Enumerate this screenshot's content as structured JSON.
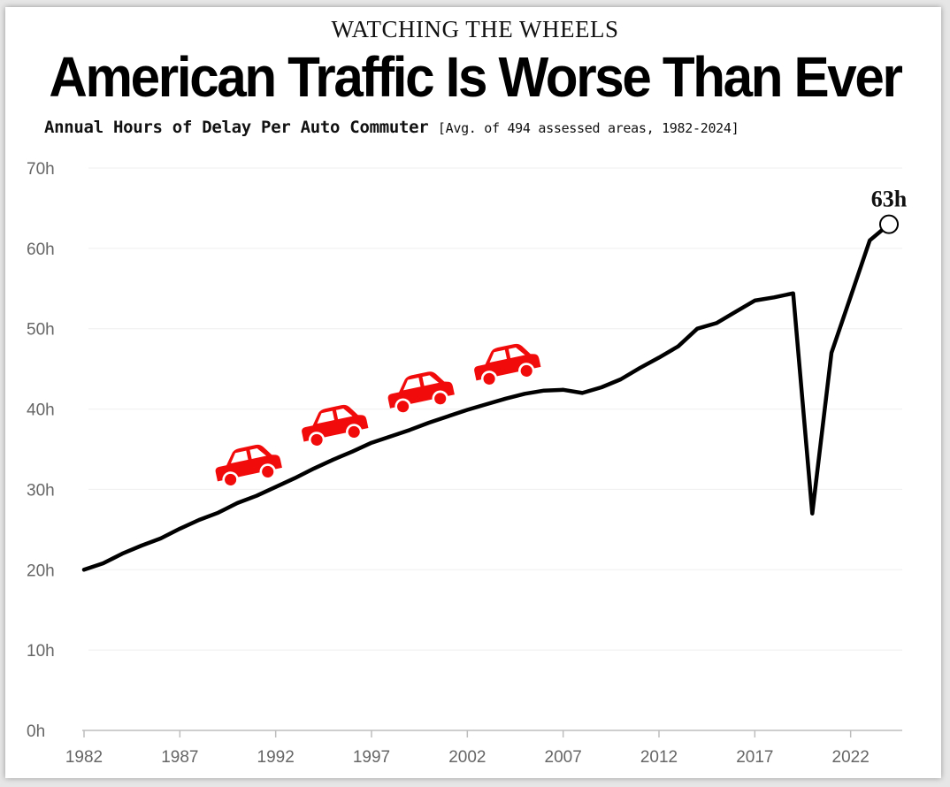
{
  "header": {
    "kicker": "WATCHING THE WHEELS",
    "title": "American Traffic Is Worse Than Ever",
    "subtitle": "Annual Hours of Delay Per Auto Commuter",
    "subtitle_note": "[Avg. of 494 assessed areas, 1982-2024]"
  },
  "colors": {
    "line": "#000000",
    "car": "#f20b0b",
    "grid": "#efefef",
    "axis_text": "#666666"
  },
  "chart_data": {
    "type": "line",
    "title": "American Traffic Is Worse Than Ever",
    "xlabel": "",
    "ylabel": "",
    "xlim": [
      1982,
      2024
    ],
    "ylim": [
      0,
      70
    ],
    "grid": true,
    "x_ticks": [
      1982,
      1987,
      1992,
      1997,
      2002,
      2007,
      2012,
      2017,
      2022
    ],
    "y_ticks": [
      0,
      10,
      20,
      30,
      40,
      50,
      60,
      70
    ],
    "y_tick_labels": [
      "0h",
      "10h",
      "20h",
      "30h",
      "40h",
      "50h",
      "60h",
      "70h"
    ],
    "series": [
      {
        "name": "Annual hours of delay per auto commuter",
        "x": [
          1982,
          1983,
          1984,
          1985,
          1986,
          1987,
          1988,
          1989,
          1990,
          1991,
          1992,
          1993,
          1994,
          1995,
          1996,
          1997,
          1998,
          1999,
          2000,
          2001,
          2002,
          2003,
          2004,
          2005,
          2006,
          2007,
          2008,
          2009,
          2010,
          2011,
          2012,
          2013,
          2014,
          2015,
          2016,
          2017,
          2018,
          2019,
          2020,
          2021,
          2022,
          2023,
          2024
        ],
        "values": [
          20.0,
          20.8,
          22.0,
          23.0,
          23.9,
          25.1,
          26.2,
          27.1,
          28.3,
          29.2,
          30.3,
          31.4,
          32.6,
          33.7,
          34.7,
          35.8,
          36.6,
          37.4,
          38.3,
          39.1,
          39.9,
          40.6,
          41.3,
          41.9,
          42.3,
          42.4,
          42.0,
          42.7,
          43.7,
          45.1,
          46.4,
          47.8,
          50.0,
          50.7,
          52.1,
          53.5,
          53.9,
          54.4,
          27.0,
          47.0,
          54.0,
          61.0,
          63.0
        ]
      }
    ],
    "annotations": [
      {
        "x": 2024,
        "y": 63,
        "text": "63h"
      }
    ]
  }
}
